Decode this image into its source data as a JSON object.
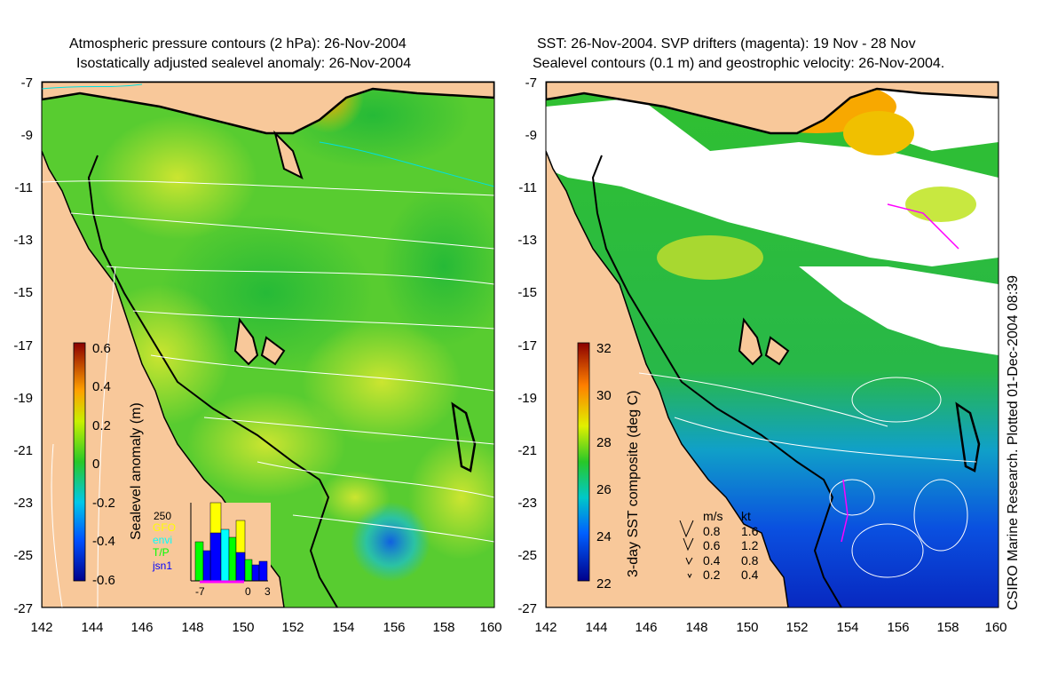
{
  "left_panel": {
    "title_line1": "Atmospheric pressure contours (2 hPa): 26-Nov-2004",
    "title_line2": "Isostatically adjusted sealevel anomaly: 26-Nov-2004",
    "colorbar": {
      "label": "Sealevel anomaly (m)",
      "ticks": [
        "0.6",
        "0.4",
        "0.2",
        "0",
        "-0.2",
        "-0.4",
        "-0.6"
      ]
    },
    "inset": {
      "max_label": "250",
      "legend": [
        {
          "name": "GFO",
          "color": "#ffff00"
        },
        {
          "name": "envi",
          "color": "#00ffff"
        },
        {
          "name": "T/P",
          "color": "#00ff00"
        },
        {
          "name": "jsn1",
          "color": "#0000ff"
        }
      ],
      "x_ticks": [
        "-7",
        "0",
        "3"
      ]
    }
  },
  "right_panel": {
    "title_line1": "SST: 26-Nov-2004. SVP drifters (magenta): 19 Nov - 28 Nov",
    "title_line2": "Sealevel contours (0.1 m) and geostrophic velocity: 26-Nov-2004.",
    "colorbar": {
      "label": "3-day SST composite (deg C)",
      "ticks": [
        "32",
        "30",
        "28",
        "26",
        "24",
        "22"
      ]
    },
    "velocity_key": {
      "header_ms": "m/s",
      "header_kt": "kt",
      "rows": [
        {
          "ms": "0.8",
          "kt": "1.6"
        },
        {
          "ms": "0.6",
          "kt": "1.2"
        },
        {
          "ms": "0.4",
          "kt": "0.8"
        },
        {
          "ms": "0.2",
          "kt": "0.4"
        }
      ]
    }
  },
  "axes": {
    "y_ticks": [
      "-7",
      "-9",
      "-11",
      "-13",
      "-15",
      "-17",
      "-19",
      "-21",
      "-23",
      "-25",
      "-27"
    ],
    "x_ticks": [
      "142",
      "144",
      "146",
      "148",
      "150",
      "152",
      "154",
      "156",
      "158",
      "160"
    ]
  },
  "credit": "CSIRO Marine Research. Plotted 01-Dec-2004 08:39",
  "colors": {
    "land": "#f8c89a",
    "sea_green": "#3ec83a",
    "sea_yellow": "#c8e840",
    "sst_blue": "#1464d8"
  }
}
